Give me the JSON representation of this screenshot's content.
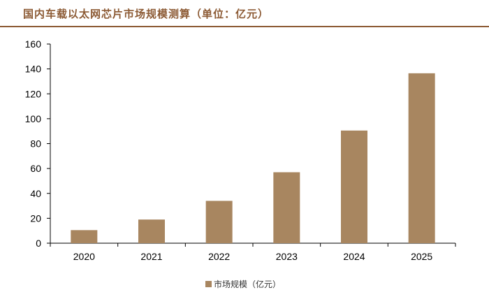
{
  "header": {
    "title": "国内车载以太网芯片市场规模测算（单位：亿元）",
    "accent_color": "#8c5a34"
  },
  "chart_data": {
    "type": "bar",
    "categories": [
      "2020",
      "2021",
      "2022",
      "2023",
      "2024",
      "2025"
    ],
    "series": [
      {
        "name": "市场规模（亿元）",
        "values": [
          10.5,
          19,
          34,
          57,
          90.5,
          136.5
        ],
        "color": "#a88660"
      }
    ],
    "ylim": [
      0,
      160
    ],
    "yticks": [
      0,
      20,
      40,
      60,
      80,
      100,
      120,
      140,
      160
    ],
    "grid": false,
    "legend_position": "bottom"
  }
}
